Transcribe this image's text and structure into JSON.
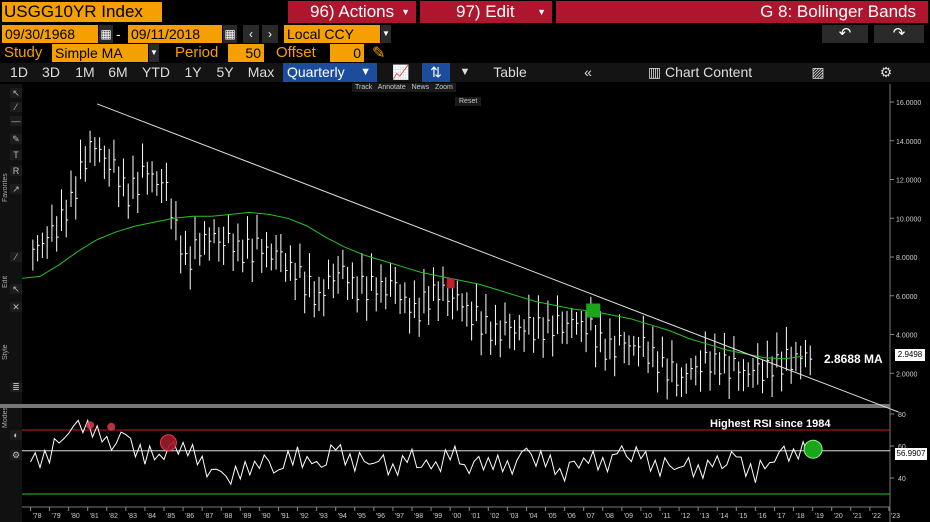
{
  "header": {
    "ticker": "USGG10YR Index",
    "actions": "96) Actions",
    "edit": "97) Edit",
    "chart_name": "G 8: Bollinger Bands"
  },
  "dates": {
    "start": "09/30/1968",
    "sep": "-",
    "end": "09/11/2018",
    "currency": "Local CCY"
  },
  "study": {
    "label": "Study",
    "value": "Simple MA",
    "period_label": "Period",
    "period": "50",
    "offset_label": "Offset",
    "offset": "0"
  },
  "toolbar": {
    "ranges": [
      "1D",
      "3D",
      "1M",
      "6M",
      "YTD",
      "1Y",
      "5Y",
      "Max"
    ],
    "frequency": "Quarterly",
    "table": "Table",
    "chart_content": "Chart Content"
  },
  "chart_tools": {
    "track": "Track",
    "annotate": "Annotate",
    "news": "News",
    "zoom": "Zoom",
    "reset": "Reset"
  },
  "side_labels": {
    "favorites": "Favorites",
    "edit": "Edit",
    "style": "Style",
    "modes": "Modes"
  },
  "annotations": {
    "ma_label": "2.8688 MA",
    "rsi_note": "Highest RSI since 1984",
    "last_price": "2.9498",
    "last_rsi": "56.9907"
  },
  "colors": {
    "accent": "#f4a000",
    "red_button": "#b0152e",
    "ma_line": "#27c227",
    "price": "#ffffff",
    "highlight_blue": "#1c4c9c"
  },
  "chart_data": [
    {
      "type": "line",
      "title": "",
      "x": [
        "'78",
        "'79",
        "'80",
        "'81",
        "'82",
        "'83",
        "'84",
        "'85",
        "'86",
        "'87",
        "'88",
        "'89",
        "'90",
        "'91",
        "'92",
        "'93",
        "'94",
        "'95",
        "'96",
        "'97",
        "'98",
        "'99",
        "'00",
        "'01",
        "'02",
        "'03",
        "'04",
        "'05",
        "'06",
        "'07",
        "'08",
        "'09",
        "'10",
        "'11",
        "'12",
        "'13",
        "'14",
        "'15",
        "'16",
        "'17",
        "'18"
      ],
      "series": [
        {
          "values": [
            8.4,
            9.1,
            10.8,
            13.9,
            13.0,
            11.2,
            12.4,
            11.4,
            7.6,
            9.0,
            9.0,
            8.3,
            8.4,
            7.9,
            6.9,
            5.9,
            7.5,
            6.4,
            6.4,
            6.4,
            5.0,
            6.2,
            6.1,
            5.1,
            4.1,
            4.2,
            4.3,
            4.3,
            4.7,
            4.6,
            3.2,
            3.5,
            3.3,
            2.3,
            1.8,
            2.6,
            2.5,
            2.1,
            2.0,
            2.4,
            2.9
          ]
        },
        {
          "values": [
            7.0,
            7.6,
            8.3,
            8.9,
            9.3,
            9.6,
            9.8,
            10.0,
            10.1,
            10.1,
            10.2,
            10.3,
            10.2,
            10.0,
            9.6,
            9.0,
            8.5,
            8.1,
            7.8,
            7.5,
            7.2,
            7.0,
            6.8,
            6.6,
            6.3,
            6.0,
            5.7,
            5.5,
            5.3,
            5.2,
            5.0,
            4.8,
            4.5,
            4.2,
            3.8,
            3.5,
            3.2,
            3.0,
            2.8,
            2.75,
            2.87
          ]
        }
      ],
      "ylim": [
        0,
        16
      ],
      "yticks": [
        "16.0000",
        "14.0000",
        "12.0000",
        "10.0000",
        "8.0000",
        "6.0000",
        "4.0000",
        "2.0000"
      ],
      "xticks": [
        "'78",
        "'79",
        "'80",
        "'81",
        "'82",
        "'83",
        "'84",
        "'85",
        "'86",
        "'87",
        "'88",
        "'89",
        "'90",
        "'91",
        "'92",
        "'93",
        "'94",
        "'95",
        "'96",
        "'97",
        "'98",
        "'99",
        "'00",
        "'01",
        "'02",
        "'03",
        "'04",
        "'05",
        "'06",
        "'07",
        "'08",
        "'09",
        "'10",
        "'11",
        "'12",
        "'13",
        "'14",
        "'15",
        "'16",
        "'17",
        "'18",
        "'19",
        "'20",
        "'21",
        "'22",
        "'23"
      ],
      "trendline": {
        "from": [
          "'81",
          15.9
        ],
        "to": [
          "'23",
          0
        ]
      }
    },
    {
      "type": "line",
      "title": "",
      "values": [
        50,
        55,
        72,
        75,
        60,
        65,
        53,
        57,
        62,
        48,
        40,
        42,
        52,
        47,
        55,
        45,
        58,
        50,
        53,
        46,
        52,
        44,
        56,
        48,
        52,
        45,
        55,
        50,
        44,
        54,
        48,
        55,
        53,
        47,
        50,
        45,
        48,
        52,
        42,
        55,
        57
      ],
      "ylim": [
        30,
        80
      ],
      "yticks": [
        "80",
        "60",
        "40"
      ]
    }
  ]
}
